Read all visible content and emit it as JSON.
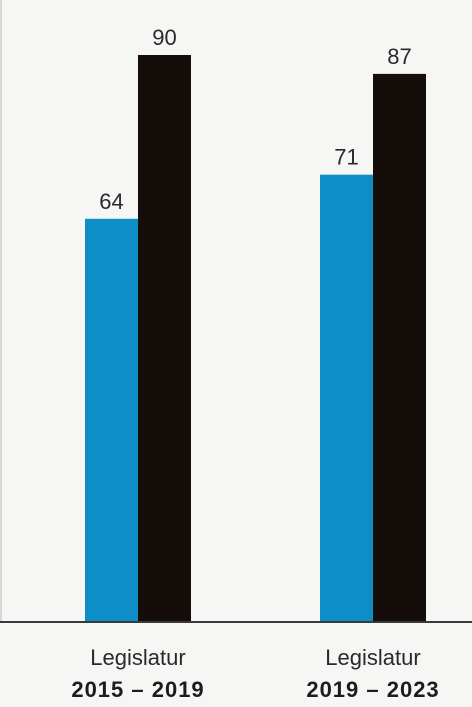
{
  "chart_data": {
    "type": "bar",
    "categories": [
      {
        "line1": "Legislatur",
        "line2": "2015 – 2019"
      },
      {
        "line1": "Legislatur",
        "line2": "2019 – 2023"
      }
    ],
    "series": [
      {
        "values": [
          64,
          71
        ],
        "color": "#0e8ec7"
      },
      {
        "values": [
          90,
          87
        ],
        "color": "#150d0a"
      }
    ],
    "ylim": [
      0,
      100
    ],
    "grid": false,
    "legend": "none"
  },
  "colors": {
    "background": "#f6f6f4",
    "axis": "#3a3a3a"
  }
}
